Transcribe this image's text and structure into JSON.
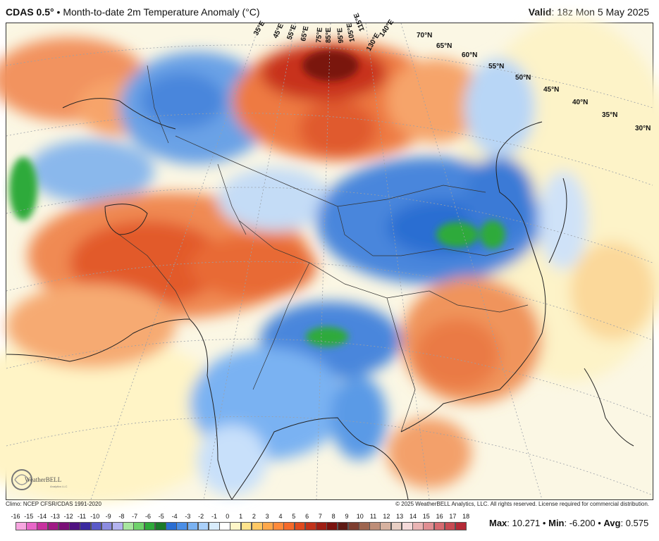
{
  "header": {
    "model": "CDAS 0.5",
    "degree_symbol": "°",
    "separator": "•",
    "product": "Month-to-date 2m Temperature Anomaly (°C)",
    "valid_label": "Valid",
    "valid_value": ": 18z Mon 5 May 2025"
  },
  "footer": {
    "climo": "Climo: NCEP CFSR/CDAS 1991-2020",
    "copyright": "© 2025 WeatherBELL Analytics, LLC. All rights reserved. License required for commercial distribution."
  },
  "logo": {
    "text": "WeatherBELL",
    "subtext": "Analytics LLC"
  },
  "stats": {
    "max_label": "Max",
    "max_value": ": 10.271",
    "min_label": "Min",
    "min_value": ": -6.200",
    "avg_label": "Avg",
    "avg_value": ": 0.575",
    "sep": "•"
  },
  "colorbar": {
    "labels": [
      "-16",
      "-15",
      "-14",
      "-13",
      "-12",
      "-11",
      "-10",
      "-9",
      "-8",
      "-7",
      "-6",
      "-5",
      "-4",
      "-3",
      "-2",
      "-1",
      "0",
      "1",
      "2",
      "3",
      "4",
      "5",
      "6",
      "7",
      "8",
      "9",
      "10",
      "11",
      "12",
      "13",
      "14",
      "15",
      "16",
      "17",
      "18"
    ],
    "colors": [
      "#f7a6e0",
      "#e866c8",
      "#c8329f",
      "#a01a85",
      "#7a1077",
      "#4e1280",
      "#3a2aa0",
      "#5a5ac8",
      "#8c8ce0",
      "#b4b4f0",
      "#a8e6a0",
      "#6ed26a",
      "#2eaa3a",
      "#1a7a2a",
      "#2a6ed2",
      "#4a8ee6",
      "#7ab2f2",
      "#aad0fa",
      "#d8ecfc",
      "#ffffff",
      "#fff6c8",
      "#ffe38c",
      "#ffc864",
      "#ffa84a",
      "#ff8a3a",
      "#f56a2a",
      "#e04a1e",
      "#c2321a",
      "#9e1e14",
      "#7a120e",
      "#5e1a14",
      "#7e3e30",
      "#9e6650",
      "#be8e78",
      "#d6b2a0",
      "#e8cfc4",
      "#f4dada",
      "#eab4b4",
      "#e08e92",
      "#d66a70",
      "#c84a52",
      "#b42a36"
    ]
  },
  "map": {
    "lat_labels": [
      "70°N",
      "65°N",
      "60°N",
      "55°N",
      "50°N",
      "45°N",
      "40°N",
      "35°N",
      "30°N"
    ],
    "lon_labels": [
      "35°E",
      "45°E",
      "55°E",
      "65°E",
      "75°E",
      "85°E",
      "95°E",
      "105°E",
      "115°E",
      "130°E",
      "140°E"
    ]
  }
}
